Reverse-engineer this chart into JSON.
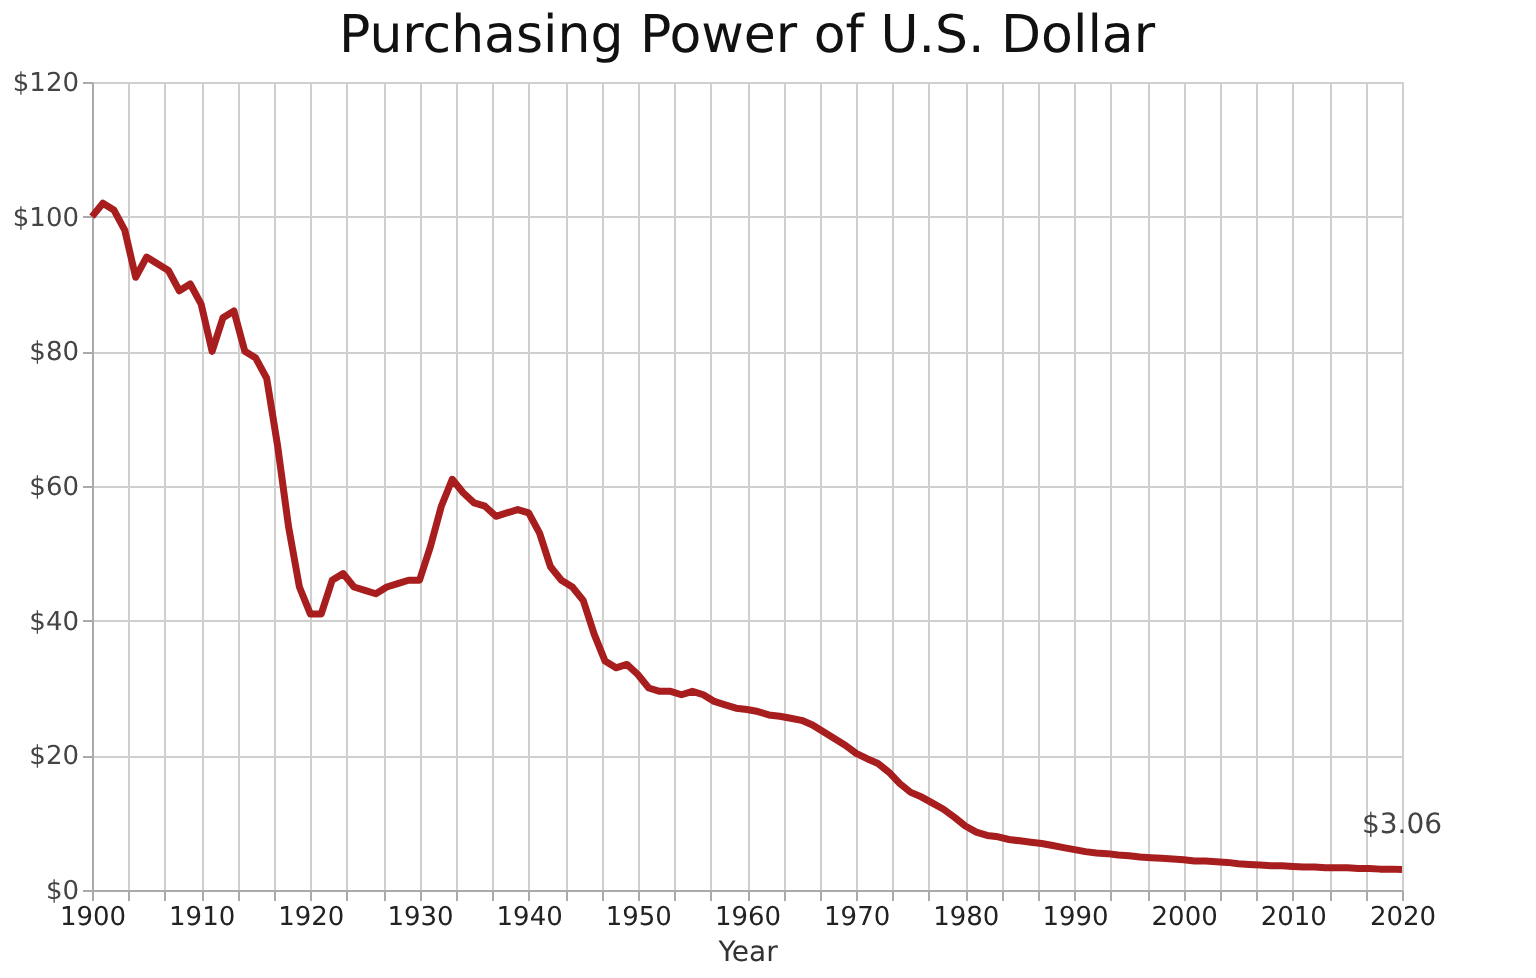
{
  "chart_data": {
    "type": "line",
    "title": "Purchasing Power of U.S. Dollar",
    "xlabel": "Year",
    "x": [
      1900,
      1901,
      1902,
      1903,
      1904,
      1905,
      1906,
      1907,
      1908,
      1909,
      1910,
      1911,
      1912,
      1913,
      1914,
      1915,
      1916,
      1917,
      1918,
      1919,
      1920,
      1921,
      1922,
      1923,
      1924,
      1925,
      1926,
      1927,
      1928,
      1929,
      1930,
      1931,
      1932,
      1933,
      1934,
      1935,
      1936,
      1937,
      1938,
      1939,
      1940,
      1941,
      1942,
      1943,
      1944,
      1945,
      1946,
      1947,
      1948,
      1949,
      1950,
      1951,
      1952,
      1953,
      1954,
      1955,
      1956,
      1957,
      1958,
      1959,
      1960,
      1961,
      1962,
      1963,
      1964,
      1965,
      1966,
      1967,
      1968,
      1969,
      1970,
      1971,
      1972,
      1973,
      1974,
      1975,
      1976,
      1977,
      1978,
      1979,
      1980,
      1981,
      1982,
      1983,
      1984,
      1985,
      1986,
      1987,
      1988,
      1989,
      1990,
      1991,
      1992,
      1993,
      1994,
      1995,
      1996,
      1997,
      1998,
      1999,
      2000,
      2001,
      2002,
      2003,
      2004,
      2005,
      2006,
      2007,
      2008,
      2009,
      2010,
      2011,
      2012,
      2013,
      2014,
      2015,
      2016,
      2017,
      2018,
      2019,
      2020
    ],
    "series": [
      {
        "color": "#a81e1e",
        "values": [
          100,
          102,
          101,
          98,
          91,
          94,
          93,
          92,
          89,
          90,
          87,
          80,
          85,
          86,
          80,
          79,
          76,
          66,
          54,
          45,
          41,
          41,
          46,
          47,
          45,
          44.5,
          44,
          45,
          45.5,
          46,
          46,
          51,
          57,
          61,
          59,
          57.5,
          57,
          55.5,
          56,
          56.5,
          56,
          53,
          48,
          46,
          45,
          43,
          38,
          34,
          33,
          33.5,
          32,
          30,
          29.5,
          29.5,
          29,
          29.5,
          29,
          28,
          27.5,
          27,
          26.8,
          26.5,
          26,
          25.8,
          25.5,
          25.2,
          24.5,
          23.5,
          22.5,
          21.5,
          20.3,
          19.5,
          18.8,
          17.5,
          15.8,
          14.5,
          13.8,
          12.9,
          12,
          10.8,
          9.5,
          8.6,
          8.1,
          7.9,
          7.5,
          7.3,
          7.1,
          6.9,
          6.6,
          6.3,
          6,
          5.7,
          5.5,
          5.4,
          5.2,
          5.1,
          4.9,
          4.8,
          4.7,
          4.6,
          4.5,
          4.3,
          4.3,
          4.2,
          4.1,
          3.9,
          3.8,
          3.7,
          3.6,
          3.6,
          3.5,
          3.4,
          3.4,
          3.3,
          3.3,
          3.3,
          3.2,
          3.2,
          3.1,
          3.1,
          3.06
        ]
      }
    ],
    "xlim": [
      1900,
      2020
    ],
    "xticks": [
      1900,
      {
        "value": 1903.33,
        "label": null
      },
      {
        "value": 1906.67,
        "label": null
      },
      1910,
      {
        "value": 1913.33,
        "label": null
      },
      {
        "value": 1916.67,
        "label": null
      },
      1920,
      {
        "value": 1923.33,
        "label": null
      },
      {
        "value": 1926.67,
        "label": null
      },
      1930,
      {
        "value": 1933.33,
        "label": null
      },
      {
        "value": 1936.67,
        "label": null
      },
      1940,
      {
        "value": 1943.33,
        "label": null
      },
      {
        "value": 1946.67,
        "label": null
      },
      1950,
      {
        "value": 1953.33,
        "label": null
      },
      {
        "value": 1956.67,
        "label": null
      },
      1960,
      {
        "value": 1963.33,
        "label": null
      },
      {
        "value": 1966.67,
        "label": null
      },
      1970,
      {
        "value": 1973.33,
        "label": null
      },
      {
        "value": 1976.67,
        "label": null
      },
      1980,
      {
        "value": 1983.33,
        "label": null
      },
      {
        "value": 1986.67,
        "label": null
      },
      1990,
      {
        "value": 1993.33,
        "label": null
      },
      {
        "value": 1996.67,
        "label": null
      },
      2000,
      {
        "value": 2003.33,
        "label": null
      },
      {
        "value": 2006.67,
        "label": null
      },
      2010,
      {
        "value": 2013.33,
        "label": null
      },
      {
        "value": 2016.67,
        "label": null
      },
      2020
    ],
    "ylim": [
      0,
      120
    ],
    "yticks": [
      {
        "value": 0,
        "label": "$0"
      },
      {
        "value": 20,
        "label": "$20"
      },
      {
        "value": 40,
        "label": "$40"
      },
      {
        "value": 60,
        "label": "$60"
      },
      {
        "value": 80,
        "label": "$80"
      },
      {
        "value": 100,
        "label": "$100"
      },
      {
        "value": 120,
        "label": "$120"
      }
    ],
    "grid": true,
    "legend": false,
    "marker": "none",
    "line_style": "solid",
    "annotations": [
      {
        "text": "$3.06",
        "x": 2020,
        "y": 3.06
      }
    ]
  }
}
